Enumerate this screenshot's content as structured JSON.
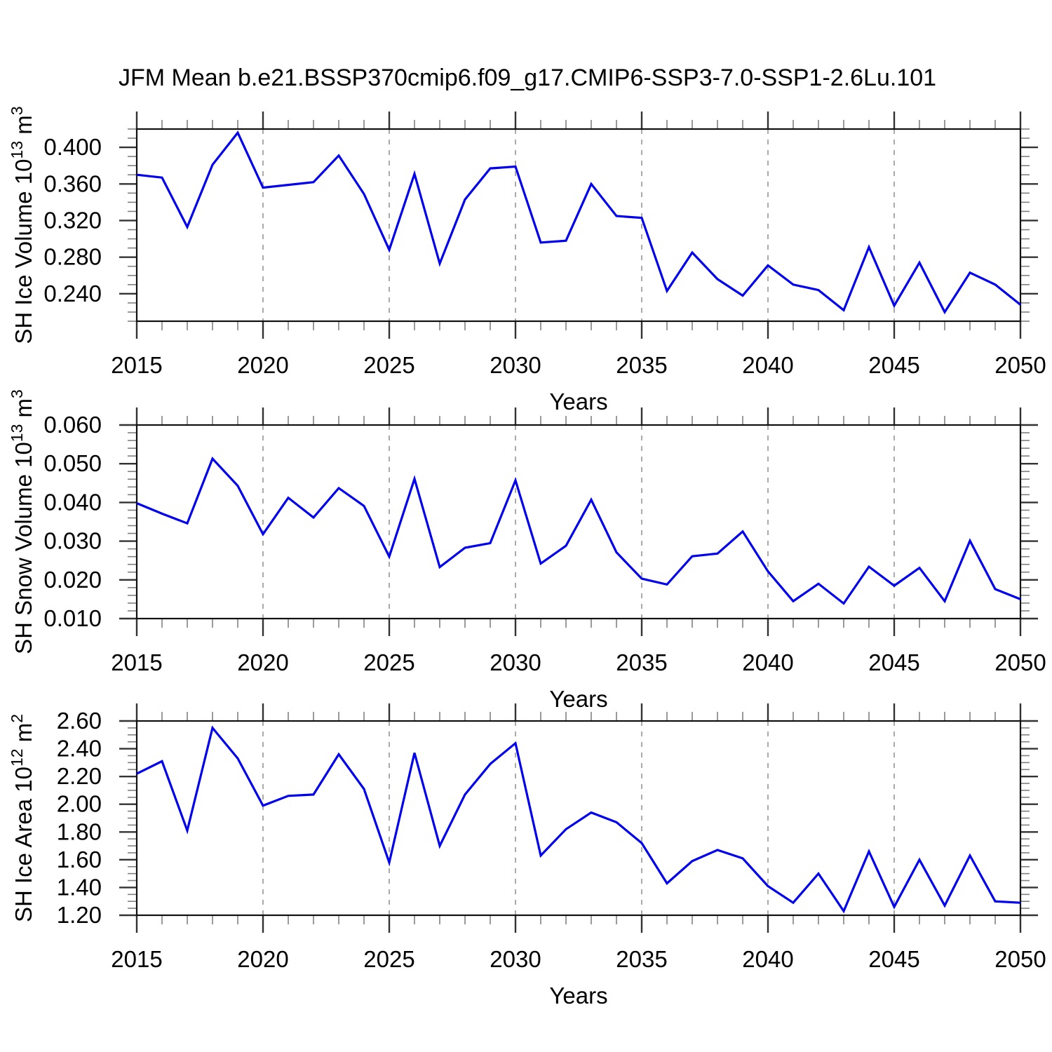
{
  "title": "JFM Mean b.e21.BSSP370cmip6.f09_g17.CMIP6-SSP3-7.0-SSP1-2.6Lu.101",
  "colors": {
    "line": "#0000ee",
    "frame": "#111111",
    "major_tick": "#333333",
    "minor_tick": "#808080",
    "grid": "#aaaaaa",
    "text": "#000000",
    "background": "#ffffff"
  },
  "chart_data": [
    {
      "type": "line",
      "name": "sh-ice-volume",
      "ylabel": "SH Ice Volume 10^13 m^3",
      "ylabel_parts": {
        "main": "SH Ice Volume 10",
        "exp1": "13",
        "unit": " m",
        "exp2": "3"
      },
      "xlabel": "Years",
      "ylim": [
        0.21,
        0.42
      ],
      "y_major_ticks": [
        0.24,
        0.28,
        0.32,
        0.36,
        0.4
      ],
      "y_minor_step": 0.01,
      "y_label_decimals": 3,
      "x_major_ticks": [
        2015,
        2020,
        2025,
        2030,
        2035,
        2040,
        2045,
        2050
      ],
      "x_minor_step": 1,
      "grid_years": [
        2020,
        2025,
        2030,
        2035,
        2040,
        2045
      ],
      "legend": "none",
      "grid": "vertical-dashed",
      "years": [
        2015,
        2016,
        2017,
        2018,
        2019,
        2020,
        2021,
        2022,
        2023,
        2024,
        2025,
        2026,
        2027,
        2028,
        2029,
        2030,
        2031,
        2032,
        2033,
        2034,
        2035,
        2036,
        2037,
        2038,
        2039,
        2040,
        2041,
        2042,
        2043,
        2044,
        2045,
        2046,
        2047,
        2048,
        2049,
        2050
      ],
      "values": [
        0.37,
        0.367,
        0.313,
        0.381,
        0.416,
        0.356,
        0.359,
        0.362,
        0.391,
        0.349,
        0.288,
        0.371,
        0.273,
        0.343,
        0.377,
        0.379,
        0.296,
        0.298,
        0.36,
        0.325,
        0.323,
        0.243,
        0.285,
        0.256,
        0.238,
        0.271,
        0.25,
        0.244,
        0.222,
        0.291,
        0.227,
        0.274,
        0.22,
        0.263,
        0.25,
        0.228
      ]
    },
    {
      "type": "line",
      "name": "sh-snow-volume",
      "ylabel": "SH Snow Volume 10^13 m^3",
      "ylabel_parts": {
        "main": "SH Snow Volume 10",
        "exp1": "13",
        "unit": " m",
        "exp2": "3"
      },
      "xlabel": "Years",
      "ylim": [
        0.01,
        0.06
      ],
      "y_major_ticks": [
        0.01,
        0.02,
        0.03,
        0.04,
        0.05,
        0.06
      ],
      "y_minor_step": 0.002,
      "y_label_decimals": 3,
      "x_major_ticks": [
        2015,
        2020,
        2025,
        2030,
        2035,
        2040,
        2045,
        2050
      ],
      "x_minor_step": 1,
      "grid_years": [
        2020,
        2025,
        2030,
        2035,
        2040,
        2045
      ],
      "legend": "none",
      "grid": "vertical-dashed",
      "years": [
        2015,
        2016,
        2017,
        2018,
        2019,
        2020,
        2021,
        2022,
        2023,
        2024,
        2025,
        2026,
        2027,
        2028,
        2029,
        2030,
        2031,
        2032,
        2033,
        2034,
        2035,
        2036,
        2037,
        2038,
        2039,
        2040,
        2041,
        2042,
        2043,
        2044,
        2045,
        2046,
        2047,
        2048,
        2049,
        2050
      ],
      "values": [
        0.0398,
        0.0371,
        0.0346,
        0.0513,
        0.0443,
        0.0318,
        0.0412,
        0.0361,
        0.0437,
        0.0391,
        0.026,
        0.0461,
        0.0233,
        0.0283,
        0.0295,
        0.0457,
        0.0242,
        0.0288,
        0.0407,
        0.0271,
        0.0203,
        0.0188,
        0.0261,
        0.0268,
        0.0325,
        0.0222,
        0.0145,
        0.019,
        0.0139,
        0.0234,
        0.0185,
        0.0231,
        0.0145,
        0.0301,
        0.0176,
        0.015
      ]
    },
    {
      "type": "line",
      "name": "sh-ice-area",
      "ylabel": "SH Ice Area 10^12 m^2",
      "ylabel_parts": {
        "main": "SH Ice Area 10",
        "exp1": "12",
        "unit": " m",
        "exp2": "2"
      },
      "xlabel": "Years",
      "ylim": [
        1.2,
        2.6
      ],
      "y_major_ticks": [
        1.2,
        1.4,
        1.6,
        1.8,
        2.0,
        2.2,
        2.4,
        2.6
      ],
      "y_minor_step": 0.05,
      "y_label_decimals": 2,
      "x_major_ticks": [
        2015,
        2020,
        2025,
        2030,
        2035,
        2040,
        2045,
        2050
      ],
      "x_minor_step": 1,
      "grid_years": [
        2020,
        2025,
        2030,
        2035,
        2040,
        2045
      ],
      "legend": "none",
      "grid": "vertical-dashed",
      "years": [
        2015,
        2016,
        2017,
        2018,
        2019,
        2020,
        2021,
        2022,
        2023,
        2024,
        2025,
        2026,
        2027,
        2028,
        2029,
        2030,
        2031,
        2032,
        2033,
        2034,
        2035,
        2036,
        2037,
        2038,
        2039,
        2040,
        2041,
        2042,
        2043,
        2044,
        2045,
        2046,
        2047,
        2048,
        2049,
        2050
      ],
      "values": [
        2.22,
        2.31,
        1.81,
        2.55,
        2.33,
        1.99,
        2.06,
        2.07,
        2.36,
        2.11,
        1.58,
        2.37,
        1.7,
        2.07,
        2.29,
        2.44,
        1.63,
        1.82,
        1.94,
        1.87,
        1.72,
        1.43,
        1.59,
        1.67,
        1.61,
        1.41,
        1.29,
        1.5,
        1.23,
        1.66,
        1.26,
        1.6,
        1.27,
        1.63,
        1.3,
        1.29
      ]
    }
  ]
}
